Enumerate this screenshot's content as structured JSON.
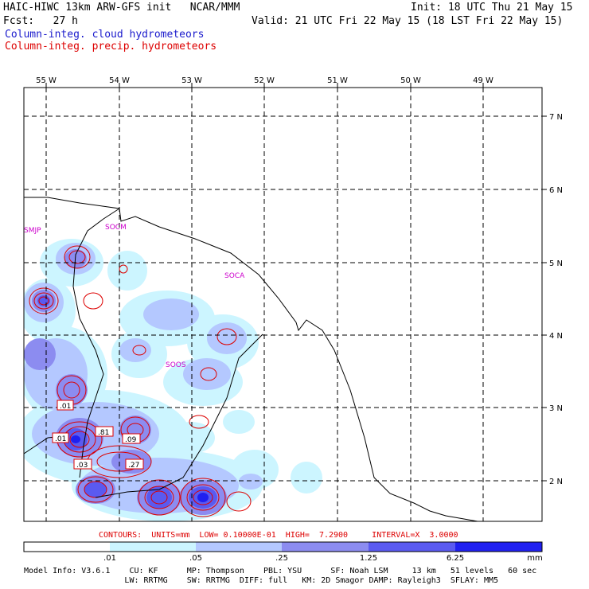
{
  "header": {
    "title_line": "HAIC-HIWC 13km ARW-GFS init   NCAR/MMM",
    "init": "Init: 18 UTC Thu 21 May 15",
    "fcst": "Fcst:   27 h",
    "valid": "Valid: 21 UTC Fri 22 May 15 (18 LST Fri 22 May 15)",
    "field_cloud": "Column-integ. cloud hydrometeors",
    "field_precip": "Column-integ. precip. hydrometeors"
  },
  "axes": {
    "lon_labels": [
      "55 W",
      "54 W",
      "53 W",
      "52 W",
      "51 W",
      "50 W",
      "49 W"
    ],
    "lat_labels": [
      "7 N",
      "6 N",
      "5 N",
      "4 N",
      "3 N",
      "2 N"
    ]
  },
  "stations": [
    "SMJP",
    "SOCM",
    "SOCA",
    "SOOS"
  ],
  "contour_labels": [
    ".01",
    ".01",
    ".81",
    ".09",
    ".03",
    ".27"
  ],
  "contours_line": "CONTOURS:  UNITS=mm  LOW= 0.10000E-01  HIGH=  7.2900     INTERVAL=X  3.0000",
  "colorbar": {
    "ticks": [
      ".01",
      ".05",
      ".25",
      "1.25",
      "6.25"
    ],
    "units": "mm",
    "colors": [
      "#ffffff",
      "#ccf5ff",
      "#b4c8ff",
      "#8c8cf0",
      "#5a5af0",
      "#2020f0"
    ]
  },
  "model_info": {
    "line1": "Model Info: V3.6.1    CU: KF      MP: Thompson    PBL: YSU      SF: Noah LSM     13 km   51 levels   60 sec",
    "line2": "                     LW: RRTMG    SW: RRTMG  DIFF: full   KM: 2D Smagor DAMP: Rayleigh3  SFLAY: MM5"
  }
}
